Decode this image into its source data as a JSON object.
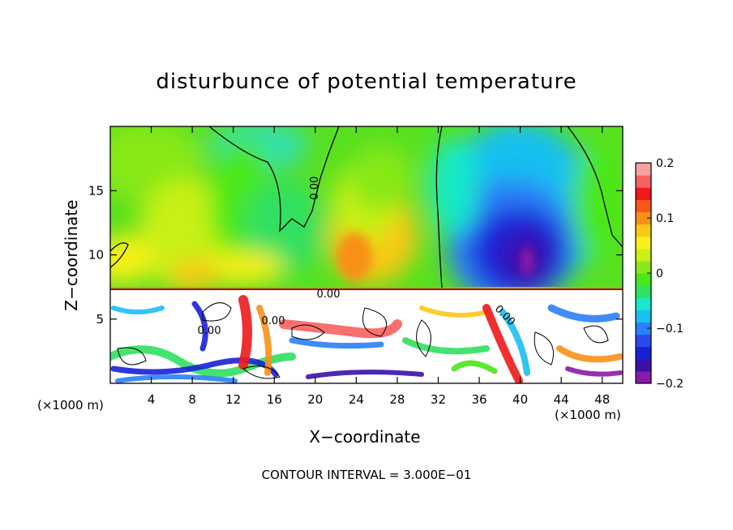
{
  "chart_data": {
    "type": "heatmap",
    "title": "disturbunce of potential temperature",
    "xlabel": "X−coordinate",
    "ylabel": "Z−coordinate",
    "x_unit_left": "(×1000 m)",
    "x_unit_right": "(×1000 m)",
    "xlim": [
      0,
      50
    ],
    "ylim": [
      0,
      20
    ],
    "x_ticks": [
      4,
      8,
      12,
      16,
      20,
      24,
      28,
      32,
      36,
      40,
      44,
      48
    ],
    "y_ticks": [
      5,
      10,
      15
    ],
    "colorbar": {
      "min": -0.2,
      "max": 0.2,
      "ticks": [
        {
          "value": 0.2,
          "label": "0.2"
        },
        {
          "value": 0.1,
          "label": "0.1"
        },
        {
          "value": 0,
          "label": "0"
        },
        {
          "value": -0.1,
          "label": "−0.1"
        },
        {
          "value": -0.2,
          "label": "−0.2"
        }
      ],
      "colors": [
        "#8a1aa8",
        "#3a10a8",
        "#1a20d8",
        "#2a4af0",
        "#2a80f8",
        "#18c0f0",
        "#18e8c8",
        "#30e060",
        "#48e818",
        "#88e818",
        "#c8f018",
        "#f8f018",
        "#f8c818",
        "#f89018",
        "#f85818",
        "#f01818",
        "#f86060",
        "#f8a0a0"
      ]
    },
    "contour_labels": [
      "0.00",
      "0.00",
      "0.00",
      "0.00",
      "0.00"
    ],
    "footnote": "CONTOUR INTERVAL = 3.000E−01"
  }
}
